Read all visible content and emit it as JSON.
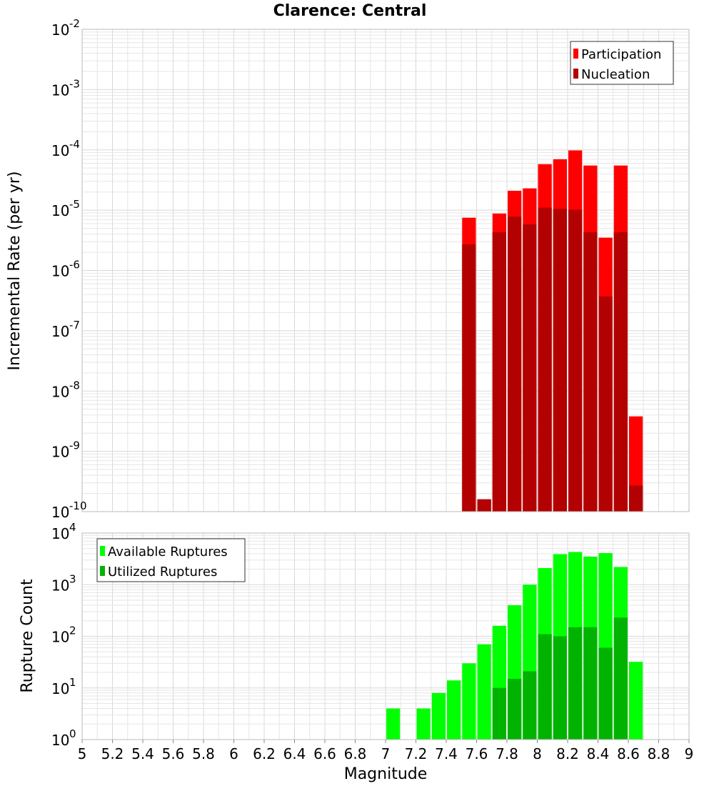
{
  "chart_data": [
    {
      "type": "bar",
      "title": "Clarence: Central",
      "ylabel": "Incremental Rate (per yr)",
      "xlabel": "",
      "yscale": "log",
      "ylim_exp": [
        -10,
        -2
      ],
      "xlim": [
        5,
        9
      ],
      "bin_width": 0.1,
      "legend_position": "top-right",
      "series": [
        {
          "name": "Participation",
          "color": "#ff0000",
          "x": [
            7.55,
            7.65,
            7.75,
            7.85,
            7.95,
            8.05,
            8.15,
            8.25,
            8.35,
            8.45,
            8.55,
            8.65
          ],
          "values": [
            7.5e-06,
            1.6e-10,
            8.8e-06,
            2.1e-05,
            2.3e-05,
            5.8e-05,
            7e-05,
            9.8e-05,
            5.5e-05,
            3.5e-06,
            5.5e-05,
            3.8e-09
          ]
        },
        {
          "name": "Nucleation",
          "color": "#b30000",
          "x": [
            7.55,
            7.65,
            7.75,
            7.85,
            7.95,
            8.05,
            8.15,
            8.25,
            8.35,
            8.45,
            8.55,
            8.65
          ],
          "values": [
            2.7e-06,
            1.6e-10,
            4.3e-06,
            7.8e-06,
            5.8e-06,
            1.1e-05,
            1.05e-05,
            1.02e-05,
            4.3e-06,
            3.7e-07,
            4.3e-06,
            2.7e-10
          ]
        }
      ]
    },
    {
      "type": "bar",
      "title": "",
      "ylabel": "Rupture Count",
      "xlabel": "Magnitude",
      "yscale": "log",
      "ylim_exp": [
        0,
        4
      ],
      "xlim": [
        5,
        9
      ],
      "bin_width": 0.1,
      "legend_position": "top-left",
      "xticks": [
        "5",
        "5.2",
        "5.4",
        "5.6",
        "5.8",
        "6",
        "6.2",
        "6.4",
        "6.6",
        "6.8",
        "7",
        "7.2",
        "7.4",
        "7.6",
        "7.8",
        "8",
        "8.2",
        "8.4",
        "8.6",
        "8.8",
        "9"
      ],
      "series": [
        {
          "name": "Available Ruptures",
          "color": "#00ff00",
          "x": [
            7.05,
            7.25,
            7.35,
            7.45,
            7.55,
            7.65,
            7.75,
            7.85,
            7.95,
            8.05,
            8.15,
            8.25,
            8.35,
            8.45,
            8.55,
            8.65
          ],
          "values": [
            4,
            4,
            8,
            14,
            30,
            70,
            160,
            400,
            1000,
            2100,
            3900,
            4300,
            3500,
            4100,
            2200,
            32
          ]
        },
        {
          "name": "Utilized Ruptures",
          "color": "#00b300",
          "x": [
            7.55,
            7.65,
            7.75,
            7.85,
            7.95,
            8.05,
            8.15,
            8.25,
            8.35,
            8.45,
            8.55,
            8.65
          ],
          "values": [
            1,
            1,
            10,
            15,
            21,
            110,
            100,
            150,
            150,
            60,
            230,
            1
          ]
        }
      ]
    }
  ]
}
